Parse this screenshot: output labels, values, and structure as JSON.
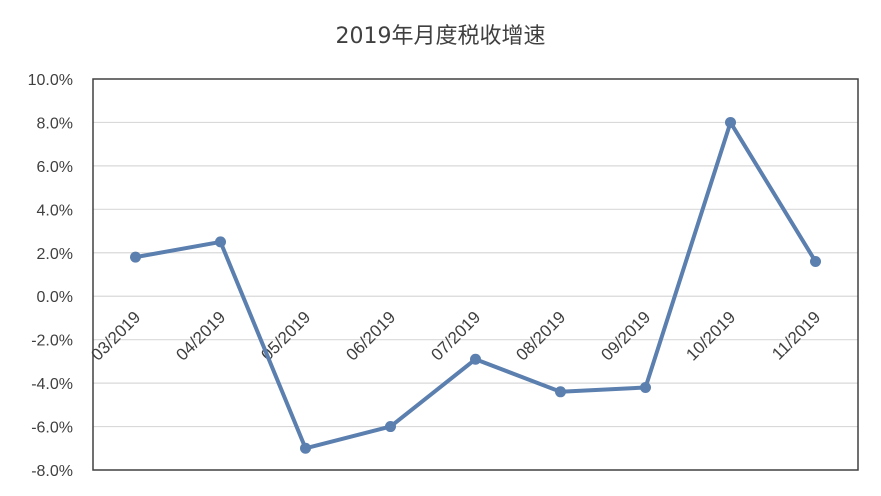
{
  "chart_data": {
    "type": "line",
    "title": "2019年月度税收增速",
    "xlabel": "",
    "ylabel": "",
    "categories": [
      "03/2019",
      "04/2019",
      "05/2019",
      "06/2019",
      "07/2019",
      "08/2019",
      "09/2019",
      "10/2019",
      "11/2019"
    ],
    "series": [
      {
        "values": [
          1.8,
          2.5,
          -7.0,
          -6.0,
          -2.9,
          -4.4,
          -4.2,
          8.0,
          1.6
        ]
      }
    ],
    "ylim": [
      -8,
      10
    ],
    "yticks": [
      "10.0%",
      "8.0%",
      "6.0%",
      "4.0%",
      "2.0%",
      "0.0%",
      "-2.0%",
      "-4.0%",
      "-6.0%",
      "-8.0%"
    ],
    "grid": true,
    "legend": "none",
    "colors": {
      "line": "#5B7FAE",
      "grid": "#d9d9d9",
      "frame": "#404040",
      "text": "#404040"
    }
  }
}
